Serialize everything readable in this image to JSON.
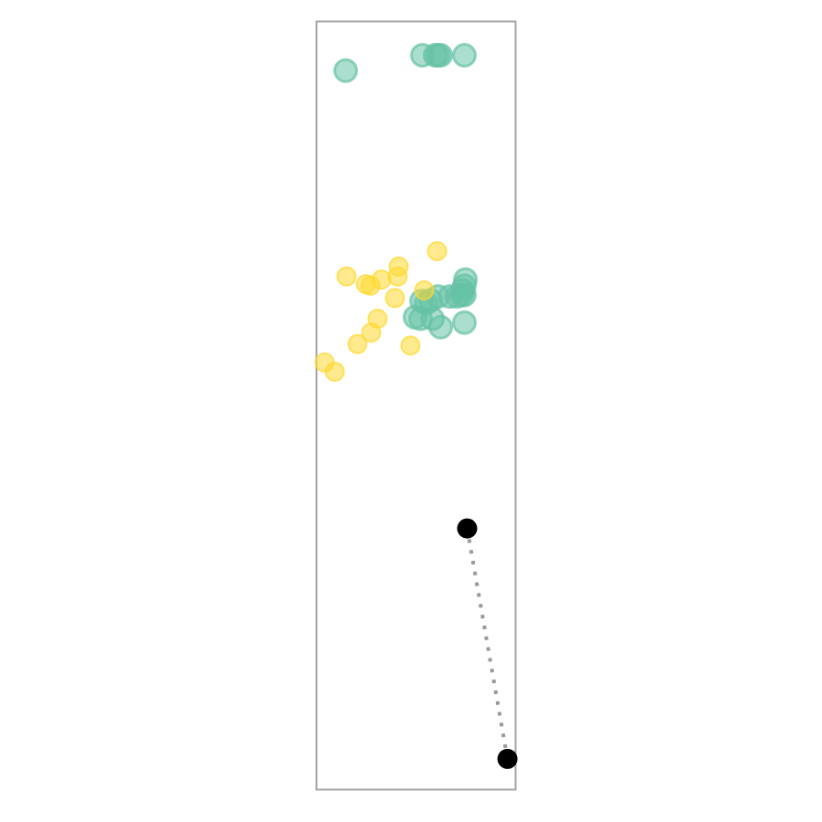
{
  "chart_data": {
    "type": "scatter",
    "title": "",
    "xlabel": "",
    "ylabel": "",
    "grid": false,
    "legend": "none",
    "xlim": [
      0,
      100
    ],
    "ylim": [
      0,
      100
    ],
    "colors": {
      "series_green": "#66c2a5",
      "series_yellow": "#ffd92f",
      "connector": "#000000",
      "dotted_line": "#999999",
      "frame": "#a6a6a6"
    },
    "series": [
      {
        "points": [
          {
            "x": 14.7,
            "y": 93.6
          },
          {
            "x": 53.2,
            "y": 95.6
          },
          {
            "x": 59.6,
            "y": 95.6
          },
          {
            "x": 61.0,
            "y": 95.6
          },
          {
            "x": 62.4,
            "y": 95.6
          },
          {
            "x": 74.3,
            "y": 95.6
          },
          {
            "x": 74.8,
            "y": 66.4
          },
          {
            "x": 74.3,
            "y": 65.6
          },
          {
            "x": 73.4,
            "y": 65.0
          },
          {
            "x": 72.9,
            "y": 64.4
          },
          {
            "x": 74.3,
            "y": 64.4
          },
          {
            "x": 70.6,
            "y": 64.2
          },
          {
            "x": 67.0,
            "y": 64.2
          },
          {
            "x": 61.0,
            "y": 64.2
          },
          {
            "x": 57.3,
            "y": 63.7
          },
          {
            "x": 52.8,
            "y": 63.6
          },
          {
            "x": 55.0,
            "y": 63.3
          },
          {
            "x": 49.5,
            "y": 61.5
          },
          {
            "x": 52.3,
            "y": 61.3
          },
          {
            "x": 58.3,
            "y": 61.3
          },
          {
            "x": 74.3,
            "y": 60.8
          },
          {
            "x": 62.4,
            "y": 60.2
          }
        ]
      },
      {
        "points": [
          {
            "x": 60.6,
            "y": 70.1
          },
          {
            "x": 41.3,
            "y": 68.1
          },
          {
            "x": 40.8,
            "y": 66.8
          },
          {
            "x": 15.1,
            "y": 66.8
          },
          {
            "x": 32.6,
            "y": 66.4
          },
          {
            "x": 24.8,
            "y": 65.8
          },
          {
            "x": 27.1,
            "y": 65.6
          },
          {
            "x": 54.1,
            "y": 65.0
          },
          {
            "x": 39.4,
            "y": 64.0
          },
          {
            "x": 30.7,
            "y": 61.3
          },
          {
            "x": 27.5,
            "y": 59.5
          },
          {
            "x": 20.6,
            "y": 58.0
          },
          {
            "x": 47.2,
            "y": 57.8
          },
          {
            "x": 4.1,
            "y": 55.6
          },
          {
            "x": 9.2,
            "y": 54.4
          }
        ]
      }
    ],
    "connector": {
      "start": {
        "x": 75.7,
        "y": 34.0
      },
      "end": {
        "x": 95.9,
        "y": 4.0
      }
    }
  }
}
